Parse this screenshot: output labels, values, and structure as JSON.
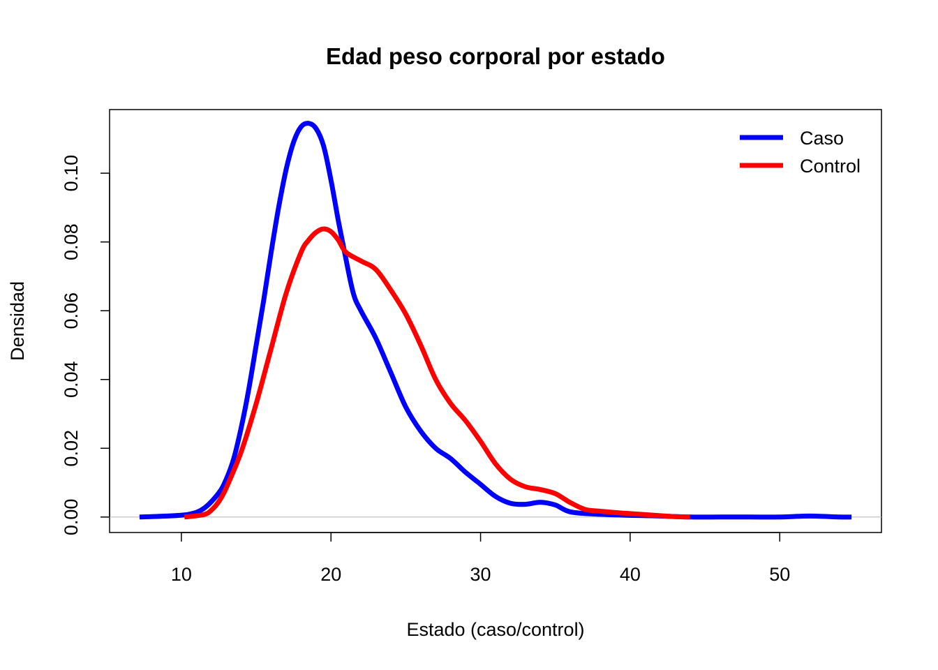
{
  "chart_data": {
    "type": "line",
    "title": "Edad  peso corporal por estado",
    "xlabel": "Estado (caso/control)",
    "ylabel": "Densidad",
    "xlim": [
      5.2,
      56.8
    ],
    "ylim": [
      -0.0045,
      0.1185
    ],
    "x_ticks": [
      10,
      20,
      30,
      40,
      50
    ],
    "x_tick_labels": [
      "10",
      "20",
      "30",
      "40",
      "50"
    ],
    "y_ticks": [
      0,
      0.02,
      0.04,
      0.06,
      0.08,
      0.1
    ],
    "y_tick_labels": [
      "0.00",
      "0.02",
      "0.04",
      "0.06",
      "0.08",
      "0.10"
    ],
    "grid": false,
    "zero_reference_line": true,
    "legend": {
      "position": "top-right",
      "entries": [
        {
          "label": "Caso",
          "color": "#0000ff"
        },
        {
          "label": "Control",
          "color": "#ff0000"
        }
      ]
    },
    "series": [
      {
        "name": "Caso",
        "color": "#0000ff",
        "x": [
          7.2,
          9,
          10.5,
          11.5,
          12.5,
          13,
          13.5,
          14,
          14.5,
          15,
          15.5,
          16,
          16.5,
          17,
          17.5,
          18,
          18.5,
          19,
          19.5,
          20,
          20.5,
          21,
          21.5,
          22,
          23,
          24,
          25,
          26,
          27,
          28,
          29,
          30,
          31,
          32,
          33,
          34,
          35,
          36,
          38,
          40,
          42,
          44,
          46,
          48,
          50,
          52,
          54,
          54.8
        ],
        "y": [
          0.0,
          0.0003,
          0.0008,
          0.0025,
          0.007,
          0.011,
          0.017,
          0.026,
          0.037,
          0.05,
          0.063,
          0.077,
          0.09,
          0.101,
          0.109,
          0.1135,
          0.1145,
          0.113,
          0.108,
          0.098,
          0.086,
          0.075,
          0.065,
          0.06,
          0.052,
          0.042,
          0.032,
          0.025,
          0.02,
          0.017,
          0.013,
          0.0095,
          0.006,
          0.004,
          0.0037,
          0.0043,
          0.0035,
          0.0015,
          0.0008,
          0.0005,
          0.0003,
          0.0,
          0.0,
          0.0,
          0.0,
          0.0003,
          0.0,
          0.0
        ]
      },
      {
        "name": "Control",
        "color": "#ff0000",
        "x": [
          10.2,
          11.5,
          12,
          12.5,
          13,
          14,
          15,
          16,
          17,
          18,
          18.5,
          19,
          19.5,
          20,
          20.5,
          21,
          22,
          23,
          24,
          25,
          26,
          27,
          28,
          29,
          30,
          31,
          32,
          33,
          34,
          35,
          36,
          37,
          38,
          39,
          40,
          41,
          42,
          43,
          44
        ],
        "y": [
          0.0,
          0.0007,
          0.002,
          0.0045,
          0.0085,
          0.019,
          0.033,
          0.049,
          0.065,
          0.077,
          0.0805,
          0.0828,
          0.0838,
          0.083,
          0.0805,
          0.077,
          0.0745,
          0.072,
          0.066,
          0.059,
          0.05,
          0.04,
          0.033,
          0.028,
          0.022,
          0.0155,
          0.011,
          0.0088,
          0.008,
          0.0068,
          0.0042,
          0.0022,
          0.0017,
          0.0013,
          0.001,
          0.0007,
          0.0004,
          0.0001,
          0.0
        ]
      }
    ]
  }
}
